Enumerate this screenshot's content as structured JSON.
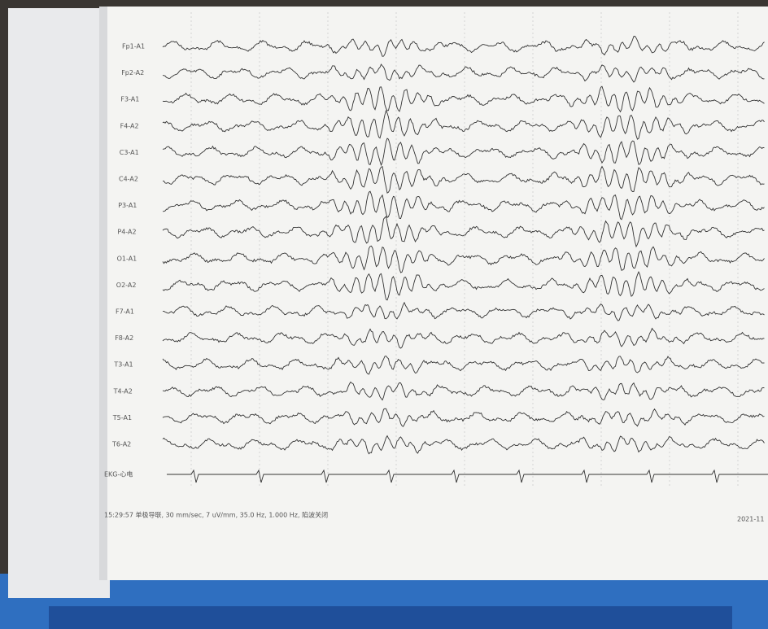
{
  "channels": [
    "Fp1-A1",
    "Fp2-A2",
    "F3-A1",
    "F4-A2",
    "C3-A1",
    "C4-A2",
    "P3-A1",
    "P4-A2",
    "O1-A1",
    "O2-A2",
    "F7-A1",
    "F8-A2",
    "T3-A1",
    "T4-A2",
    "T5-A1",
    "T6-A2"
  ],
  "ekg_label": "EKG-心电",
  "footer": {
    "settings": "15:29:57 单极导联, 30 mm/sec, 7 uV/mm, 35.0 Hz, 1.000 Hz, 陷波关闭",
    "date": "2021-11"
  }
}
